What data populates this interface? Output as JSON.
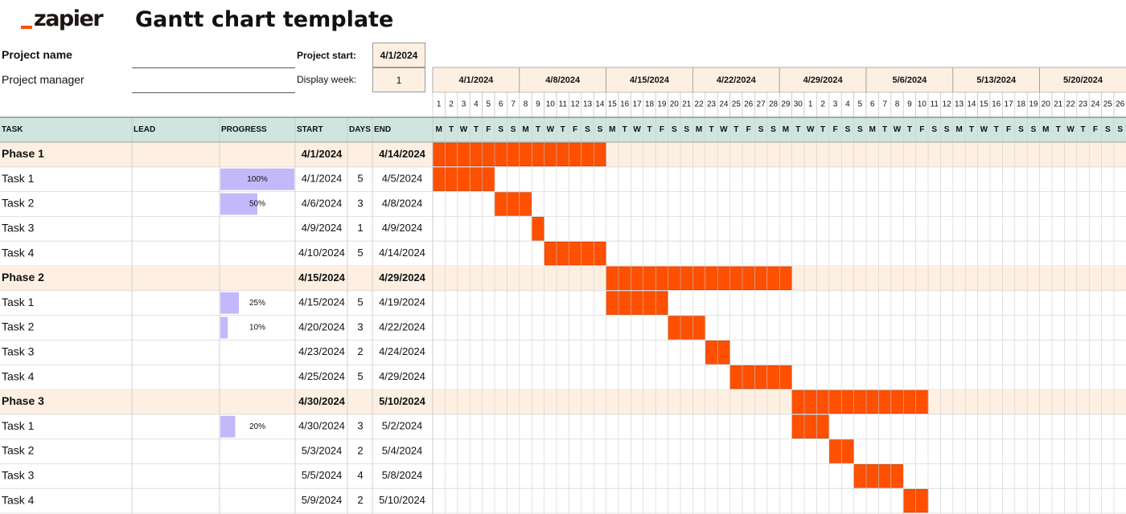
{
  "brand": {
    "logo_text": "zapier"
  },
  "title": "Gantt chart template",
  "project": {
    "name_label": "Project name",
    "manager_label": "Project manager",
    "start_label": "Project start:",
    "start_value": "4/1/2024",
    "week_label": "Display week:",
    "week_value": "1"
  },
  "timeline": {
    "weeks": [
      "4/1/2024",
      "4/8/2024",
      "4/15/2024",
      "4/22/2024",
      "4/29/2024",
      "5/6/2024",
      "5/13/2024",
      "5/20/2024"
    ],
    "day_numbers": [
      "1",
      "2",
      "3",
      "4",
      "5",
      "6",
      "7",
      "8",
      "9",
      "10",
      "11",
      "12",
      "13",
      "14",
      "15",
      "16",
      "17",
      "18",
      "19",
      "20",
      "21",
      "22",
      "23",
      "24",
      "25",
      "26",
      "27",
      "28",
      "29",
      "30",
      "1",
      "2",
      "3",
      "4",
      "5",
      "6",
      "7",
      "8",
      "9",
      "10",
      "11",
      "12",
      "13",
      "14",
      "15",
      "16",
      "17",
      "18",
      "19",
      "20",
      "21",
      "22",
      "23",
      "24",
      "25",
      "26"
    ],
    "day_letters": [
      "M",
      "T",
      "W",
      "T",
      "F",
      "S",
      "S",
      "M",
      "T",
      "W",
      "T",
      "F",
      "S",
      "S",
      "M",
      "T",
      "W",
      "T",
      "F",
      "S",
      "S",
      "M",
      "T",
      "W",
      "T",
      "F",
      "S",
      "S",
      "M",
      "T",
      "W",
      "T",
      "F",
      "S",
      "S",
      "M",
      "T",
      "W",
      "T",
      "F",
      "S",
      "S",
      "M",
      "T",
      "W",
      "T",
      "F",
      "S",
      "S",
      "M",
      "T",
      "W",
      "T",
      "F",
      "S",
      "S"
    ]
  },
  "columns": {
    "task": "TASK",
    "lead": "LEAD",
    "progress": "PROGRESS",
    "start": "START",
    "days": "DAYS",
    "end": "END"
  },
  "rows": [
    {
      "type": "phase",
      "task": "Phase 1",
      "start": "4/1/2024",
      "end": "4/14/2024",
      "offset": 0,
      "span": 14
    },
    {
      "type": "task",
      "task": "Task 1",
      "progress": 100,
      "progress_label": "100%",
      "start": "4/1/2024",
      "days": "5",
      "end": "4/5/2024",
      "offset": 0,
      "span": 5
    },
    {
      "type": "task",
      "task": "Task 2",
      "progress": 50,
      "progress_label": "50%",
      "start": "4/6/2024",
      "days": "3",
      "end": "4/8/2024",
      "offset": 5,
      "span": 3
    },
    {
      "type": "task",
      "task": "Task 3",
      "start": "4/9/2024",
      "days": "1",
      "end": "4/9/2024",
      "offset": 8,
      "span": 1
    },
    {
      "type": "task",
      "task": "Task 4",
      "start": "4/10/2024",
      "days": "5",
      "end": "4/14/2024",
      "offset": 9,
      "span": 5
    },
    {
      "type": "phase",
      "task": "Phase 2",
      "start": "4/15/2024",
      "end": "4/29/2024",
      "offset": 14,
      "span": 15
    },
    {
      "type": "task",
      "task": "Task 1",
      "progress": 25,
      "progress_label": "25%",
      "start": "4/15/2024",
      "days": "5",
      "end": "4/19/2024",
      "offset": 14,
      "span": 5
    },
    {
      "type": "task",
      "task": "Task 2",
      "progress": 10,
      "progress_label": "10%",
      "start": "4/20/2024",
      "days": "3",
      "end": "4/22/2024",
      "offset": 19,
      "span": 3
    },
    {
      "type": "task",
      "task": "Task 3",
      "start": "4/23/2024",
      "days": "2",
      "end": "4/24/2024",
      "offset": 22,
      "span": 2
    },
    {
      "type": "task",
      "task": "Task 4",
      "start": "4/25/2024",
      "days": "5",
      "end": "4/29/2024",
      "offset": 24,
      "span": 5
    },
    {
      "type": "phase",
      "task": "Phase 3",
      "start": "4/30/2024",
      "end": "5/10/2024",
      "offset": 29,
      "span": 11
    },
    {
      "type": "task",
      "task": "Task 1",
      "progress": 20,
      "progress_label": "20%",
      "start": "4/30/2024",
      "days": "3",
      "end": "5/2/2024",
      "offset": 29,
      "span": 3
    },
    {
      "type": "task",
      "task": "Task 2",
      "start": "5/3/2024",
      "days": "2",
      "end": "5/4/2024",
      "offset": 32,
      "span": 2
    },
    {
      "type": "task",
      "task": "Task 3",
      "start": "5/5/2024",
      "days": "4",
      "end": "5/8/2024",
      "offset": 34,
      "span": 4
    },
    {
      "type": "task",
      "task": "Task 4",
      "start": "5/9/2024",
      "days": "2",
      "end": "5/10/2024",
      "offset": 38,
      "span": 2
    }
  ],
  "colors": {
    "bar": "#ff4f00",
    "phase_bg": "#fdf0e2",
    "header_bg": "#cfe5e0",
    "progress": "#c3b8fa",
    "grid": "#d0d0d0"
  }
}
